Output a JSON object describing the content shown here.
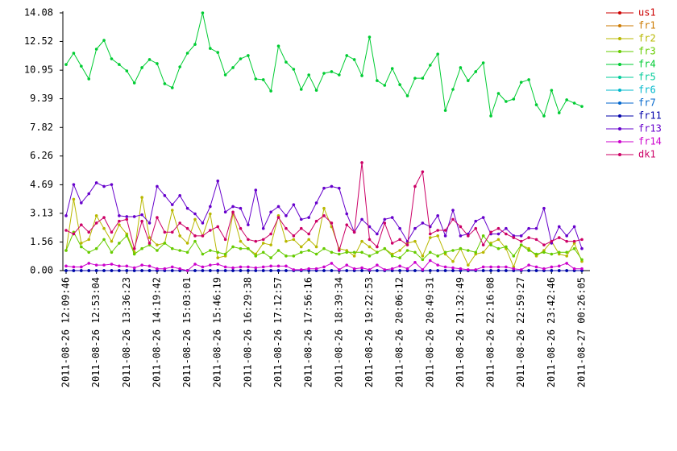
{
  "chart_data": {
    "type": "line",
    "categories": [
      "2011-08-26 12:09:46",
      null,
      null,
      null,
      "2011-08-26 12:53:04",
      null,
      null,
      null,
      "2011-08-26 13:36:23",
      null,
      null,
      null,
      "2011-08-26 14:19:42",
      null,
      null,
      null,
      "2011-08-26 15:03:01",
      null,
      null,
      null,
      "2011-08-26 15:46:19",
      null,
      null,
      null,
      "2011-08-26 16:29:38",
      null,
      null,
      null,
      "2011-08-26 17:12:57",
      null,
      null,
      null,
      "2011-08-26 17:56:16",
      null,
      null,
      null,
      "2011-08-26 18:39:34",
      null,
      null,
      null,
      "2011-08-26 19:22:53",
      null,
      null,
      null,
      "2011-08-26 20:06:12",
      null,
      null,
      null,
      "2011-08-26 20:49:31",
      null,
      null,
      null,
      "2011-08-26 21:32:49",
      null,
      null,
      null,
      "2011-08-26 22:16:08",
      null,
      null,
      null,
      "2011-08-26 22:59:27",
      null,
      null,
      null,
      "2011-08-26 23:42:46",
      null,
      null,
      null,
      "2011-08-27 00:26:05"
    ],
    "ylim": [
      0,
      14.08
    ],
    "yticks": [
      {
        "value": 0,
        "label": "0.00"
      },
      1.56,
      3.13,
      4.69,
      6.26,
      7.82,
      9.39,
      10.95,
      12.52,
      14.08
    ],
    "grid": false,
    "legend": "upper right",
    "series": [
      {
        "name": "us1",
        "color": "#cc0000",
        "values": [
          0,
          0,
          0,
          0,
          0,
          0,
          0,
          0,
          0,
          0,
          0,
          0,
          0,
          0,
          0,
          0,
          0,
          0,
          0,
          0,
          0,
          0,
          0,
          0,
          0,
          0,
          0,
          0,
          0,
          0,
          0,
          0,
          0,
          0,
          0,
          0,
          0,
          0,
          0,
          0,
          0,
          0,
          0,
          0,
          0,
          0,
          0,
          0,
          0,
          0,
          0,
          0,
          0,
          0,
          0,
          0,
          0,
          0,
          0,
          0,
          0,
          0,
          0,
          0,
          0,
          0,
          0,
          0,
          0
        ]
      },
      {
        "name": "fr1",
        "color": "#cc7a00",
        "values": [
          0,
          0,
          0,
          0,
          0,
          0,
          0,
          0,
          0,
          0,
          0,
          0,
          0,
          0,
          0,
          0,
          0,
          0,
          0,
          0,
          0,
          0,
          0,
          0,
          0,
          0,
          0,
          0,
          0,
          0,
          0,
          0,
          0,
          0,
          0,
          0,
          0,
          0,
          0,
          0,
          0,
          0,
          0,
          0,
          0,
          0,
          0,
          0,
          0,
          0,
          0,
          0,
          0,
          0,
          0,
          0,
          0,
          0,
          0,
          0,
          0,
          0,
          0,
          0,
          0,
          0,
          0,
          0,
          0
        ]
      },
      {
        "name": "fr2",
        "color": "#b8b800",
        "values": [
          1.1,
          3.9,
          1.5,
          1.7,
          3.0,
          2.3,
          1.6,
          2.5,
          2.0,
          1.0,
          4.0,
          1.8,
          1.4,
          1.5,
          3.3,
          1.9,
          1.5,
          2.8,
          1.9,
          3.1,
          0.7,
          0.8,
          3.1,
          1.6,
          1.2,
          0.9,
          1.5,
          1.4,
          3.0,
          1.6,
          1.7,
          1.3,
          1.7,
          1.3,
          3.4,
          2.4,
          1.2,
          1.1,
          0.8,
          1.6,
          1.3,
          1.0,
          1.2,
          0.9,
          1.1,
          1.5,
          1.6,
          0.8,
          1.8,
          1.9,
          0.9,
          0.5,
          1.2,
          0.3,
          0.9,
          1.0,
          1.5,
          1.7,
          1.2,
          0.2,
          1.4,
          1.2,
          0.8,
          1.1,
          1.6,
          0.9,
          0.8,
          1.5,
          0.5
        ]
      },
      {
        "name": "fr3",
        "color": "#66cc00",
        "values": [
          1.1,
          2.1,
          1.3,
          1.0,
          1.2,
          1.7,
          1.0,
          1.5,
          1.9,
          0.9,
          1.2,
          1.4,
          1.1,
          1.5,
          1.2,
          1.1,
          1.0,
          1.6,
          0.9,
          1.1,
          1.0,
          0.9,
          1.3,
          1.2,
          1.2,
          0.8,
          1.0,
          0.7,
          1.1,
          0.8,
          0.8,
          1.0,
          1.1,
          0.9,
          1.2,
          1.0,
          0.9,
          1.0,
          1.0,
          1.0,
          0.8,
          1.0,
          1.2,
          0.8,
          0.7,
          1.1,
          1.0,
          0.6,
          1.0,
          0.8,
          1.0,
          1.1,
          1.2,
          1.1,
          1.0,
          1.9,
          1.4,
          1.2,
          1.3,
          0.8,
          1.4,
          1.1,
          0.9,
          1.0,
          0.9,
          1.0,
          1.0,
          1.2,
          0.6
        ]
      },
      {
        "name": "fr4",
        "color": "#00cc33",
        "values": [
          11.26,
          11.88,
          11.17,
          10.47,
          12.1,
          12.58,
          11.57,
          11.26,
          10.91,
          10.25,
          11.09,
          11.53,
          11.31,
          10.21,
          9.99,
          11.13,
          11.88,
          12.36,
          14.08,
          12.14,
          11.92,
          10.69,
          11.09,
          11.57,
          11.75,
          10.47,
          10.43,
          9.81,
          12.27,
          11.39,
          11.0,
          9.9,
          10.69,
          9.85,
          10.78,
          10.87,
          10.69,
          11.75,
          11.53,
          10.65,
          12.76,
          10.38,
          10.12,
          11.04,
          10.16,
          9.55,
          10.51,
          10.51,
          11.22,
          11.83,
          8.75,
          9.9,
          11.09,
          10.38,
          10.87,
          11.35,
          8.45,
          9.68,
          9.24,
          9.37,
          10.29,
          10.43,
          9.06,
          8.45,
          9.85,
          8.62,
          9.33,
          9.15,
          8.97
        ]
      },
      {
        "name": "fr5",
        "color": "#00cc99",
        "values": [
          0,
          0,
          0,
          0,
          0,
          0,
          0,
          0,
          0,
          0,
          0,
          0,
          0,
          0,
          0,
          0,
          0,
          0,
          0,
          0,
          0,
          0,
          0,
          0,
          0,
          0,
          0,
          0,
          0,
          0,
          0,
          0,
          0,
          0,
          0,
          0,
          0,
          0,
          0,
          0,
          0,
          0,
          0,
          0,
          0,
          0,
          0,
          0,
          0,
          0,
          0,
          0,
          0,
          0,
          0,
          0,
          0,
          0,
          0,
          0,
          0,
          0,
          0,
          0,
          0,
          0,
          0,
          0,
          0
        ]
      },
      {
        "name": "fr6",
        "color": "#00b8cc",
        "values": [
          0,
          0,
          0,
          0,
          0,
          0,
          0,
          0,
          0,
          0,
          0,
          0,
          0,
          0,
          0,
          0,
          0,
          0,
          0,
          0,
          0,
          0,
          0,
          0,
          0,
          0,
          0,
          0,
          0,
          0,
          0,
          0,
          0,
          0,
          0,
          0,
          0,
          0,
          0,
          0,
          0,
          0,
          0,
          0,
          0,
          0,
          0,
          0,
          0,
          0,
          0,
          0,
          0,
          0,
          0,
          0,
          0,
          0,
          0,
          0,
          0,
          0,
          0,
          0,
          0,
          0,
          0,
          0,
          0
        ]
      },
      {
        "name": "fr7",
        "color": "#0066cc",
        "values": [
          0,
          0,
          0,
          0,
          0,
          0,
          0,
          0,
          0,
          0,
          0,
          0,
          0,
          0,
          0,
          0,
          0,
          0,
          0,
          0,
          0,
          0,
          0,
          0,
          0,
          0,
          0,
          0,
          0,
          0,
          0,
          0,
          0,
          0,
          0,
          0,
          0,
          0,
          0,
          0,
          0,
          0,
          0,
          0,
          0,
          0,
          0,
          0,
          0,
          0,
          0,
          0,
          0,
          0,
          0,
          0,
          0,
          0,
          0,
          0,
          0,
          0,
          0,
          0,
          0,
          0,
          0,
          0,
          0
        ]
      },
      {
        "name": "fr11",
        "color": "#0000aa",
        "values": [
          0,
          0,
          0,
          0,
          0,
          0,
          0,
          0,
          0,
          0,
          0,
          0,
          0,
          0,
          0,
          0,
          0,
          0,
          0,
          0,
          0,
          0,
          0,
          0,
          0,
          0,
          0,
          0,
          0,
          0,
          0,
          0,
          0,
          0,
          0,
          0,
          0,
          0,
          0,
          0,
          0,
          0,
          0,
          0,
          0,
          0,
          0,
          0,
          0,
          0,
          0,
          0,
          0,
          0,
          0,
          0,
          0,
          0,
          0,
          0,
          0,
          0,
          0,
          0,
          0,
          0,
          0,
          0,
          0
        ]
      },
      {
        "name": "fr13",
        "color": "#6600cc",
        "values": [
          3.0,
          4.7,
          3.7,
          4.2,
          4.8,
          4.6,
          4.7,
          3.0,
          2.95,
          2.95,
          3.05,
          2.6,
          4.6,
          4.1,
          3.6,
          4.1,
          3.4,
          3.1,
          2.6,
          3.5,
          4.9,
          3.2,
          3.5,
          3.4,
          2.5,
          4.4,
          2.3,
          3.2,
          3.5,
          3.0,
          3.6,
          2.8,
          2.9,
          3.7,
          4.5,
          4.6,
          4.5,
          3.1,
          2.1,
          2.8,
          2.4,
          2.0,
          2.8,
          2.9,
          2.3,
          1.6,
          2.3,
          2.6,
          2.4,
          3.0,
          1.9,
          3.3,
          1.9,
          2.0,
          2.7,
          2.9,
          2.0,
          2.0,
          2.3,
          1.9,
          1.9,
          2.3,
          2.3,
          3.4,
          1.5,
          2.4,
          1.9,
          2.4,
          1.2
        ]
      },
      {
        "name": "fr14",
        "color": "#cc00cc",
        "values": [
          0.25,
          0.2,
          0.2,
          0.4,
          0.3,
          0.3,
          0.35,
          0.25,
          0.25,
          0.15,
          0.3,
          0.25,
          0.1,
          0.1,
          0.2,
          0.1,
          0.0,
          0.35,
          0.2,
          0.3,
          0.35,
          0.2,
          0.15,
          0.2,
          0.2,
          0.15,
          0.2,
          0.25,
          0.25,
          0.25,
          0.05,
          0.05,
          0.1,
          0.1,
          0.2,
          0.4,
          0.05,
          0.3,
          0.1,
          0.15,
          0.05,
          0.3,
          0.05,
          0.1,
          0.25,
          0.1,
          0.45,
          0.05,
          0.55,
          0.3,
          0.2,
          0.15,
          0.1,
          0.05,
          0.05,
          0.2,
          0.2,
          0.2,
          0.2,
          0.1,
          0.05,
          0.3,
          0.2,
          0.1,
          0.2,
          0.25,
          0.4,
          0.1,
          0.1
        ]
      },
      {
        "name": "dk1",
        "color": "#cc0066",
        "values": [
          2.2,
          2.0,
          2.5,
          2.1,
          2.6,
          2.9,
          2.1,
          2.7,
          2.8,
          1.2,
          2.7,
          1.5,
          2.9,
          2.1,
          2.1,
          2.6,
          2.3,
          1.9,
          1.9,
          2.2,
          2.4,
          1.7,
          3.2,
          2.3,
          1.7,
          1.6,
          1.7,
          2.0,
          2.9,
          2.3,
          1.9,
          2.3,
          2.0,
          2.7,
          3.0,
          2.6,
          1.1,
          2.5,
          2.1,
          5.9,
          1.7,
          1.3,
          2.6,
          1.5,
          1.7,
          1.4,
          4.6,
          5.4,
          2.0,
          2.2,
          2.2,
          2.8,
          2.4,
          1.9,
          2.3,
          1.4,
          2.1,
          2.3,
          2.0,
          1.8,
          1.6,
          1.8,
          1.7,
          1.4,
          1.6,
          1.8,
          1.6,
          1.6,
          1.7
        ]
      }
    ]
  }
}
